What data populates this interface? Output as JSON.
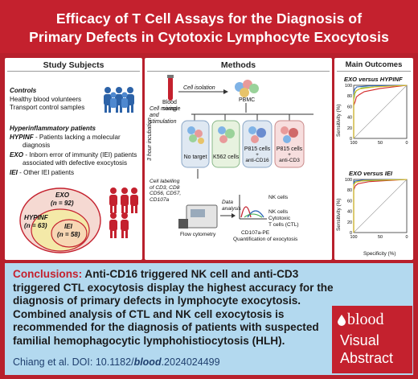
{
  "title": {
    "line1": "Efficacy of T Cell Assays for the Diagnosis of",
    "line2": "Primary Defects in Cytotoxic Lymphocyte Exocytosis"
  },
  "study": {
    "heading": "Study Subjects",
    "controls_label": "Controls",
    "controls_items": [
      "Healthy blood volunteers",
      "Transport control samples"
    ],
    "hyper_label": "Hyperinflammatory patients",
    "hypinf_code": "HYPINF",
    "hypinf_desc": "- Patients lacking a molecular",
    "hypinf_desc2": "diagnosis",
    "exo_code": "EXO",
    "exo_desc": "- Inborn error of immunity (IEI) patients",
    "exo_desc2": "associated with defective exocytosis",
    "iei_code": "IEI",
    "iei_desc": "- Other IEI patients",
    "venn": {
      "exo_name": "EXO",
      "exo_n": "(n = 92)",
      "hypinf_name": "HYPINF",
      "hypinf_n": "(n = 63)",
      "iei_name": "IEI",
      "iei_n": "(n = 58)"
    }
  },
  "methods": {
    "heading": "Methods",
    "blood_sample": "Blood\nsample",
    "cell_isolation": "Cell isolation",
    "pbmc": "PBMC",
    "mixing": "Cell mixing\nand\nstimulation",
    "incubation": "3 hour incubation",
    "conditions": [
      "No target",
      "K562 cells",
      "P815 cells",
      "P815 cells"
    ],
    "cond3_extra": "+\nanti-CD16",
    "cond4_extra": "+\nanti-CD3",
    "labelling": "Cell labelling\nof CD3, CD8\nCD56, CD57,\nCD107a",
    "flow": "Flow cytometry",
    "analysis": "Data\nanalysis",
    "nk_cells": "NK cells",
    "nk_cells2": "NK cells",
    "ctl": "Cytotoxic\nT cells (CTL)",
    "cd107a": "CD107a-PE",
    "quant": "Quantification of exocytosis"
  },
  "outcomes": {
    "heading": "Main Outcomes",
    "chart1_title": "EXO versus HYPINF",
    "chart2_title": "EXO versus IEI",
    "ylabel": "Sensitivity (%)",
    "xlabel": "Specificity (%)",
    "yticks": [
      "100",
      "80",
      "60",
      "40",
      "20",
      "0"
    ],
    "xticks": [
      "100",
      "50",
      "0"
    ],
    "colors": {
      "blue": "#2a62b6",
      "green": "#39a845",
      "red": "#d32a2a",
      "yellow": "#e2c21e"
    }
  },
  "conclusions": {
    "label": "Conclusions:",
    "text": "Anti-CD16 triggered NK cell and anti-CD3 triggered CTL exocytosis display the highest accuracy for the diagnosis of primary defects in lymphocyte exocytosis. Combined analysis of CTL and NK cell exocytosis is recommended for the diagnosis of patients with suspected familial hemophagocytic lymphohistiocytosis (HLH)."
  },
  "citation": {
    "prefix": "Chiang et al. DOI: 10.1182/",
    "bold": "blood",
    "suffix": ".2024024499"
  },
  "logo": {
    "brand": "blood",
    "line1": "Visual",
    "line2": "Abstract"
  }
}
